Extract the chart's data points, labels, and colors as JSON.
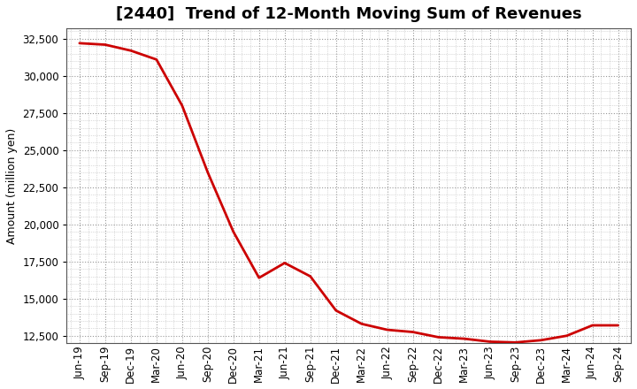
{
  "title": "[2440]  Trend of 12-Month Moving Sum of Revenues",
  "ylabel": "Amount (million yen)",
  "line_color": "#cc0000",
  "background_color": "#ffffff",
  "plot_bg_color": "#ffffff",
  "grid_color": "#aaaaaa",
  "ylim": [
    12000,
    33200
  ],
  "yticks": [
    12500,
    15000,
    17500,
    20000,
    22500,
    25000,
    27500,
    30000,
    32500
  ],
  "x_labels": [
    "Jun-19",
    "Sep-19",
    "Dec-19",
    "Mar-20",
    "Jun-20",
    "Sep-20",
    "Dec-20",
    "Mar-21",
    "Jun-21",
    "Sep-21",
    "Dec-21",
    "Mar-22",
    "Jun-22",
    "Sep-22",
    "Dec-22",
    "Mar-23",
    "Jun-23",
    "Sep-23",
    "Dec-23",
    "Mar-24",
    "Jun-24",
    "Sep-24"
  ],
  "values": [
    32200,
    32100,
    31700,
    31100,
    28000,
    23500,
    19500,
    16400,
    17400,
    16500,
    14200,
    13300,
    12900,
    12750,
    12400,
    12300,
    12100,
    12050,
    12200,
    12500,
    13200,
    13200
  ],
  "title_fontsize": 13,
  "ylabel_fontsize": 9,
  "tick_fontsize": 8.5
}
